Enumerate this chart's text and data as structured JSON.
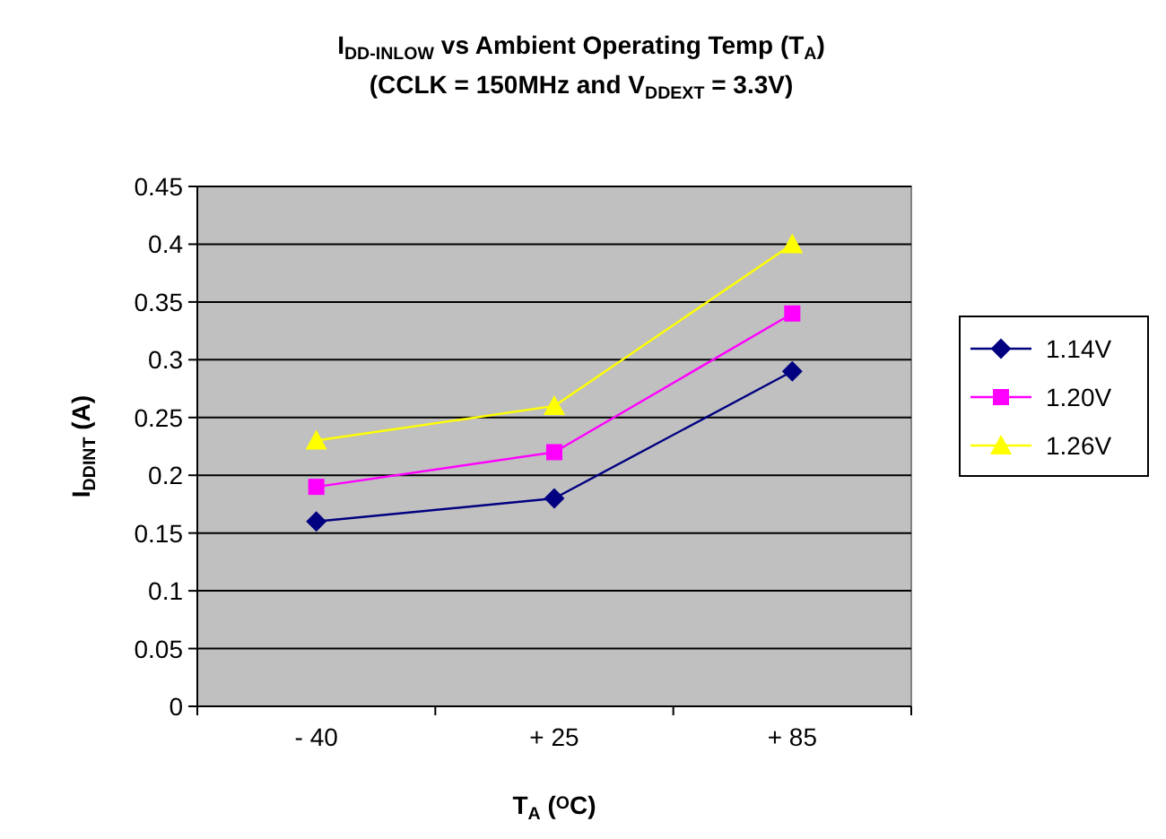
{
  "chart_data": {
    "type": "line",
    "title": "I$_{DD-INLOW}$ vs Ambient Operating Temp (T$_{A}$)",
    "subtitle": "(CCLK = 150MHz and V$_{DDEXT}$ = 3.3V)",
    "xlabel": "T$_{A}$ ($^{O}$C)",
    "ylabel": "I$_{DDINT}$ (A)",
    "categories": [
      "- 40",
      "+ 25",
      "+ 85"
    ],
    "series": [
      {
        "name": "1.14V",
        "color": "#000080",
        "marker": "diamond",
        "values": [
          0.16,
          0.18,
          0.29
        ]
      },
      {
        "name": "1.20V",
        "color": "#ff00ff",
        "marker": "square",
        "values": [
          0.19,
          0.22,
          0.34
        ]
      },
      {
        "name": "1.26V",
        "color": "#ffff00",
        "marker": "triangle",
        "values": [
          0.23,
          0.26,
          0.4
        ]
      }
    ],
    "ylim": [
      0,
      0.45
    ],
    "yticks": [
      0,
      0.05,
      0.1,
      0.15,
      0.2,
      0.25,
      0.3,
      0.35,
      0.4,
      0.45
    ],
    "grid": "y",
    "legend": "right"
  }
}
